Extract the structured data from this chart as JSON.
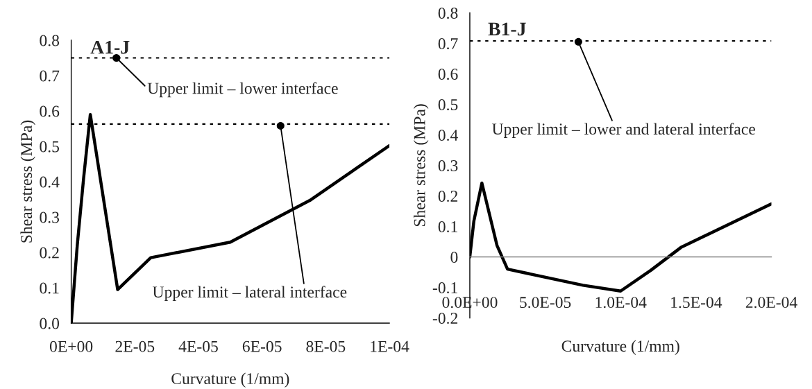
{
  "chart_data": [
    {
      "type": "line",
      "title": "A1-J",
      "xlabel": "Curvature (1/mm)",
      "ylabel": "Shear stress (MPa)",
      "x": [
        0,
        1.9e-06,
        3.9e-06,
        6e-06,
        1.46e-05,
        2.5e-05,
        5e-05,
        7.5e-05,
        0.0001
      ],
      "series": [
        {
          "color": "#000000",
          "values": [
            0,
            0.22,
            0.41,
            0.59,
            0.095,
            0.185,
            0.229,
            0.347,
            0.502
          ]
        }
      ],
      "xlim": [
        0,
        0.0001
      ],
      "ylim": [
        0,
        0.8
      ],
      "xticks": [
        {
          "value": 0,
          "label": "0E+00"
        },
        {
          "value": 2e-05,
          "label": "2E-05"
        },
        {
          "value": 4e-05,
          "label": "4E-05"
        },
        {
          "value": 6e-05,
          "label": "6E-05"
        },
        {
          "value": 8e-05,
          "label": "8E-05"
        },
        {
          "value": 0.0001,
          "label": "1E-04"
        }
      ],
      "yticks": [
        {
          "value": 0,
          "label": "0.0"
        },
        0.1,
        0.2,
        0.3,
        0.4,
        0.5,
        0.6,
        0.7,
        0.8
      ],
      "ref_lines": [
        {
          "axis": "y",
          "value": 0.75,
          "line_style": "dotted",
          "color": "#000000"
        },
        {
          "axis": "y",
          "value": 0.563,
          "line_style": "dotted",
          "color": "#000000"
        }
      ],
      "annotations": [
        {
          "text": "Upper limit – lower interface",
          "x": 1.42e-05,
          "y": 0.75
        },
        {
          "text": "Upper limit – lateral interface",
          "x": 6.58e-05,
          "y": 0.558
        }
      ]
    },
    {
      "type": "line",
      "title": "B1-J",
      "xlabel": "Curvature (1/mm)",
      "ylabel": "Shear stress (MPa)",
      "x": [
        0,
        2.7e-06,
        8e-06,
        1.8e-05,
        2.5e-05,
        7.5e-05,
        0.0001,
        0.00012,
        0.00014,
        0.0002
      ],
      "series": [
        {
          "color": "#000000",
          "values": [
            0,
            0.118,
            0.242,
            0.038,
            -0.04,
            -0.093,
            -0.112,
            -0.044,
            0.031,
            0.174
          ]
        }
      ],
      "xlim": [
        0,
        0.0002
      ],
      "ylim": [
        -0.2,
        0.8
      ],
      "xticks": [
        {
          "value": 0,
          "label": "0.0E+00"
        },
        {
          "value": 5e-05,
          "label": "5.0E-05"
        },
        {
          "value": 0.0001,
          "label": "1.0E-04"
        },
        {
          "value": 0.00015,
          "label": "1.5E-04"
        },
        {
          "value": 0.0002,
          "label": "2.0E-04"
        }
      ],
      "yticks": [
        -0.2,
        -0.1,
        0,
        0.1,
        0.2,
        0.3,
        0.4,
        0.5,
        0.6,
        0.7,
        0.8
      ],
      "ref_lines": [
        {
          "axis": "y",
          "value": 0.708,
          "line_style": "dotted",
          "color": "#000000"
        }
      ],
      "annotations": [
        {
          "text": "Upper limit – lower and lateral interface",
          "x": 7.2e-05,
          "y": 0.705
        }
      ]
    }
  ]
}
